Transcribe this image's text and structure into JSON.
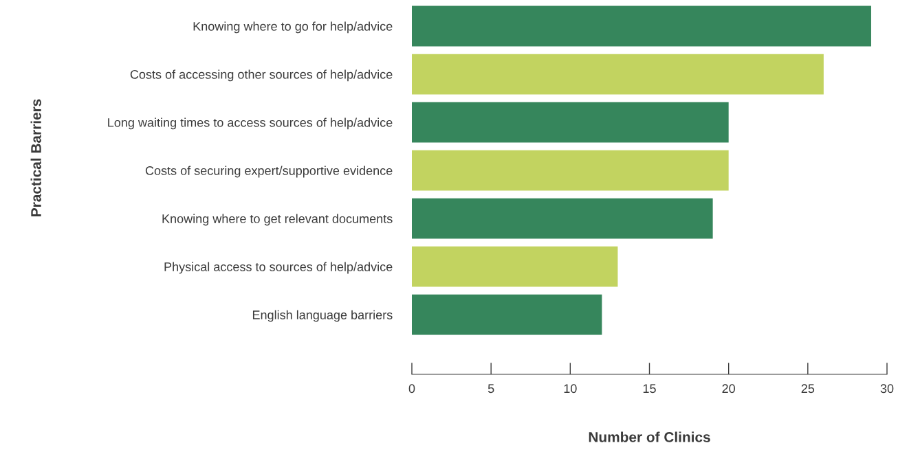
{
  "chart_data": {
    "type": "bar",
    "orientation": "horizontal",
    "xlabel": "Number of Clinics",
    "ylabel": "Practical Barriers",
    "categories": [
      "Knowing where to go for help/advice",
      "Costs of accessing other sources of help/advice",
      "Long waiting times to access sources of help/advice",
      "Costs of securing expert/supportive evidence",
      "Knowing where to get relevant documents",
      "Physical access to sources of help/advice",
      "English language barriers"
    ],
    "values": [
      29,
      26,
      20,
      20,
      19,
      13,
      12
    ],
    "colors": [
      "#36865c",
      "#c2d360",
      "#36865c",
      "#c2d360",
      "#36865c",
      "#c2d360",
      "#36865c"
    ],
    "xlim": [
      0,
      30
    ],
    "xticks": [
      0,
      5,
      10,
      15,
      20,
      25,
      30
    ],
    "grid": false
  }
}
